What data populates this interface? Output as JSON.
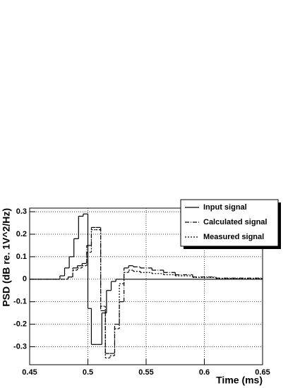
{
  "chart_data": {
    "type": "step",
    "xlabel": "Time (ms)",
    "ylabel": "PSD (dB re. 1V^2/Hz)",
    "xlim": [
      0.45,
      0.65
    ],
    "xticks": [
      0.45,
      0.5,
      0.55,
      0.6,
      0.65
    ],
    "ylim": [
      -0.38,
      0.316
    ],
    "yticks": [
      -0.3,
      -0.2,
      -0.1,
      0,
      0.1,
      0.2,
      0.3
    ],
    "grid": true,
    "legend": "upper right",
    "series": [
      {
        "name": "Input signal",
        "color": "#000000",
        "style": "solid",
        "x": [
          0.45,
          0.476,
          0.48,
          0.484,
          0.488,
          0.492,
          0.496,
          0.5,
          0.503,
          0.508,
          0.512,
          0.516,
          0.52,
          0.524,
          0.528,
          0.65
        ],
        "values": [
          0,
          0.015,
          0.05,
          0.1,
          0.18,
          0.28,
          0.29,
          -0.13,
          -0.29,
          -0.29,
          -0.15,
          -0.05,
          -0.01,
          0,
          0,
          0
        ]
      },
      {
        "name": "Calculated signal",
        "color": "#000000",
        "style": "dashdot",
        "x": [
          0.45,
          0.483,
          0.487,
          0.491,
          0.495,
          0.499,
          0.503,
          0.507,
          0.511,
          0.515,
          0.519,
          0.523,
          0.527,
          0.531,
          0.535,
          0.539,
          0.545,
          0.555,
          0.565,
          0.575,
          0.59,
          0.61,
          0.65
        ],
        "values": [
          0,
          0.01,
          0.05,
          0.06,
          0.07,
          0.15,
          0.23,
          0.23,
          -0.14,
          -0.33,
          -0.33,
          -0.2,
          -0.1,
          0.05,
          0.06,
          0.055,
          0.05,
          0.04,
          0.03,
          0.02,
          0.01,
          0.005,
          0
        ]
      },
      {
        "name": "Measured signal",
        "color": "#000000",
        "style": "dotted",
        "x": [
          0.45,
          0.483,
          0.487,
          0.491,
          0.495,
          0.499,
          0.503,
          0.507,
          0.511,
          0.515,
          0.519,
          0.523,
          0.527,
          0.531,
          0.535,
          0.539,
          0.545,
          0.555,
          0.565,
          0.575,
          0.59,
          0.61,
          0.65
        ],
        "values": [
          0,
          0.01,
          0.04,
          0.05,
          0.06,
          0.12,
          0.22,
          0.22,
          -0.12,
          -0.35,
          -0.34,
          -0.22,
          -0.02,
          0.03,
          0.04,
          0.035,
          0.03,
          0.025,
          0.02,
          0.015,
          0.008,
          0.003,
          0
        ]
      }
    ]
  }
}
